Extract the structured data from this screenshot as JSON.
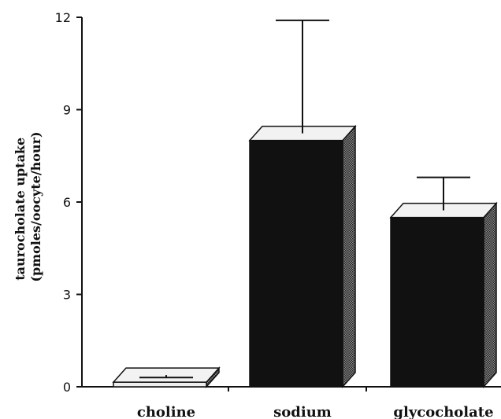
{
  "chart_data": {
    "type": "bar",
    "title": "",
    "xlabel": "",
    "ylabel_lines": [
      "taurocholate uptake",
      "(pmoles/oocyte/hour)"
    ],
    "ylim": [
      0,
      12
    ],
    "yticks": [
      0,
      3,
      6,
      9,
      12
    ],
    "categories": [
      "choline",
      "sodium",
      "glycocholate"
    ],
    "values": [
      0.15,
      8.0,
      5.5
    ],
    "errors": [
      0.15,
      3.9,
      1.3
    ],
    "colors": {
      "choline": "#eeeeee",
      "sodium": "#111111",
      "glycocholate": "#111111",
      "axis": "#111111"
    },
    "grid": false,
    "legend": "none"
  }
}
